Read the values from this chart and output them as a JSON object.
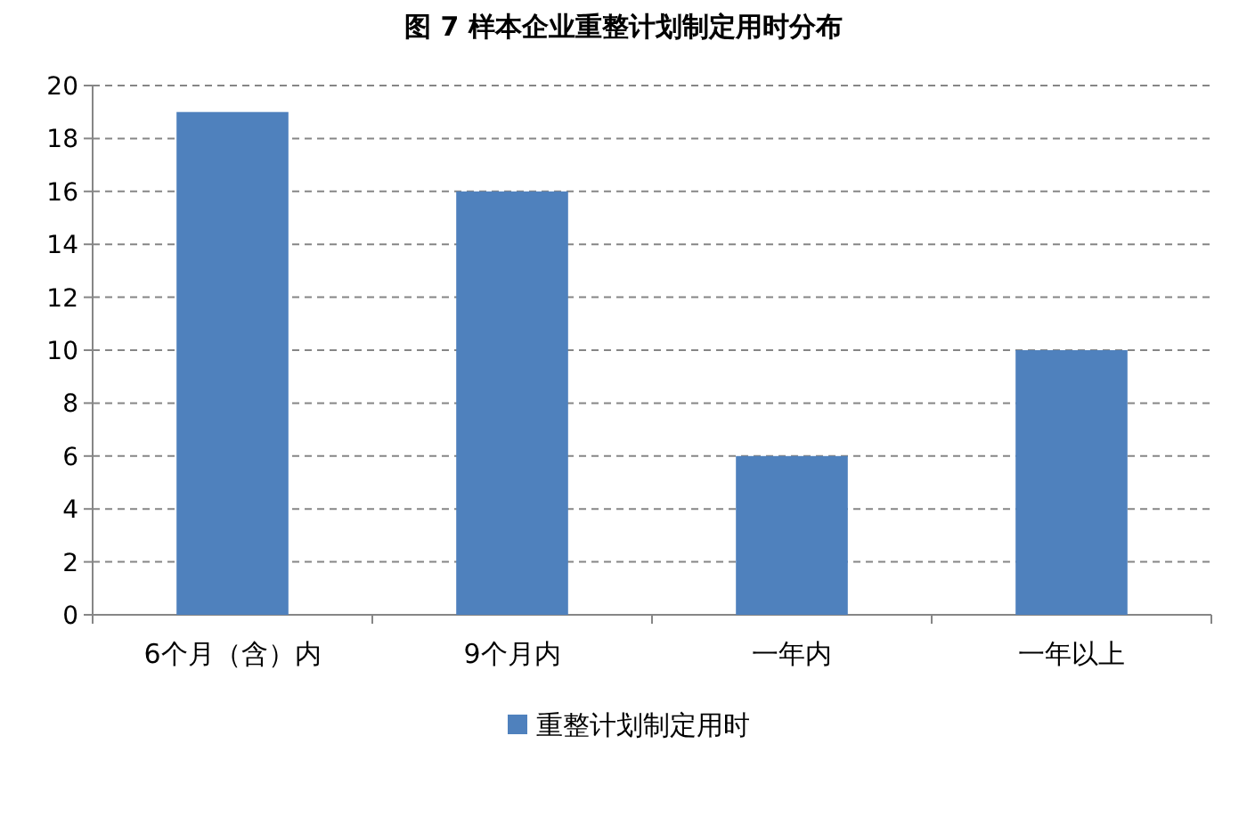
{
  "chart_data": {
    "type": "bar",
    "title": "图 7  样本企业重整计划制定用时分布",
    "categories": [
      "6个月（含）内",
      "9个月内",
      "一年内",
      "一年以上"
    ],
    "series": [
      {
        "name": "重整计划制定用时",
        "color": "#4f81bd",
        "values": [
          19,
          16,
          6,
          10
        ]
      }
    ],
    "ylim": [
      0,
      20
    ],
    "yticks": [
      0,
      2,
      4,
      6,
      8,
      10,
      12,
      14,
      16,
      18,
      20
    ],
    "grid": "y",
    "legend": "bottom"
  }
}
